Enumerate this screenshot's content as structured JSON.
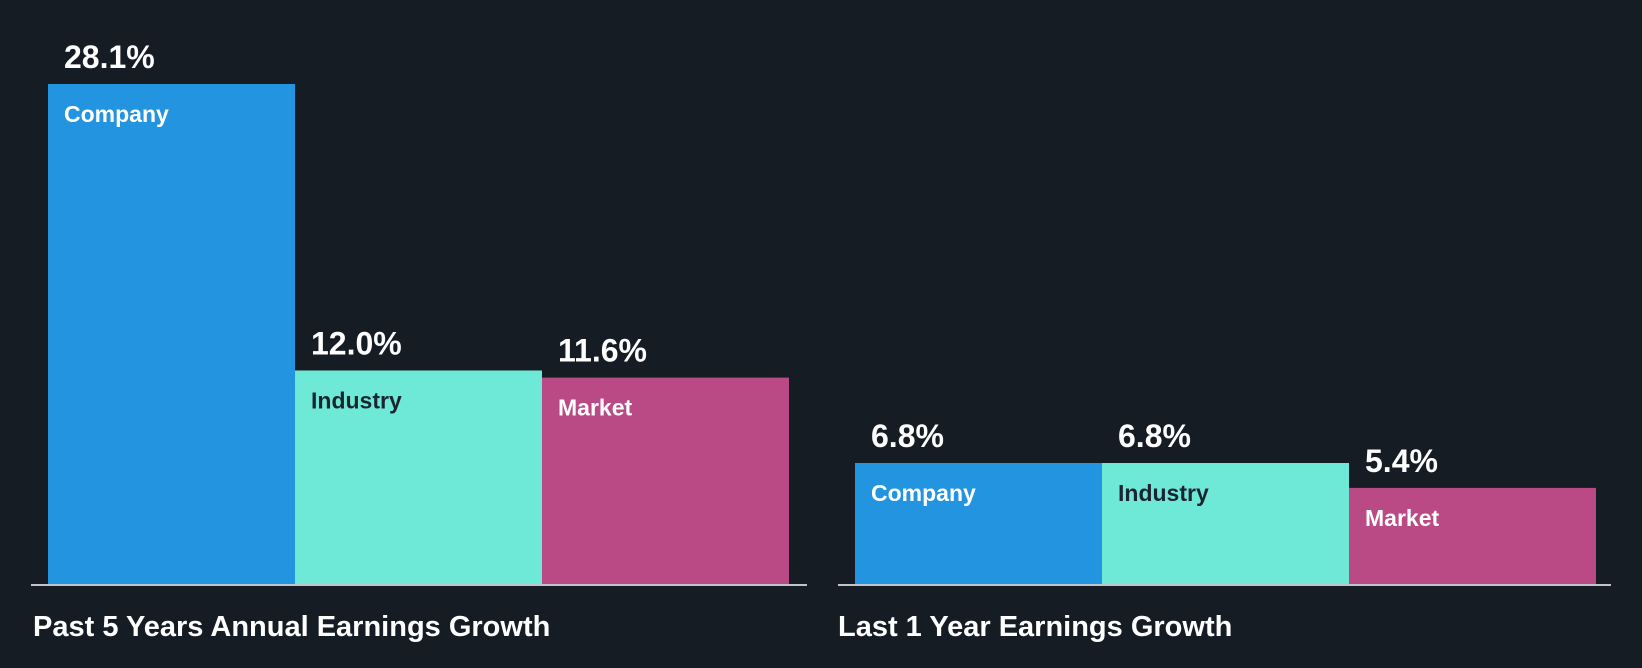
{
  "colors": {
    "background": "#161c24",
    "company": "#2394e0",
    "industry": "#6ee8d7",
    "market": "#b94a86",
    "axis": "#bfc4cc",
    "text_light": "#ffffff",
    "text_dark": "#1c2430"
  },
  "chart_data": [
    {
      "type": "bar",
      "title": "Past 5 Years Annual Earnings Growth",
      "categories": [
        "Company",
        "Industry",
        "Market"
      ],
      "values": [
        28.1,
        12.0,
        11.6
      ],
      "value_labels": [
        "28.1%",
        "12.0%",
        "11.6%"
      ],
      "unit": "%",
      "ylim": [
        0,
        28.1
      ],
      "grid": false,
      "xlabel": "",
      "ylabel": ""
    },
    {
      "type": "bar",
      "title": "Last 1 Year Earnings Growth",
      "categories": [
        "Company",
        "Industry",
        "Market"
      ],
      "values": [
        6.8,
        6.8,
        5.4
      ],
      "value_labels": [
        "6.8%",
        "6.8%",
        "5.4%"
      ],
      "unit": "%",
      "ylim": [
        0,
        28.1
      ],
      "grid": false,
      "xlabel": "",
      "ylabel": ""
    }
  ]
}
